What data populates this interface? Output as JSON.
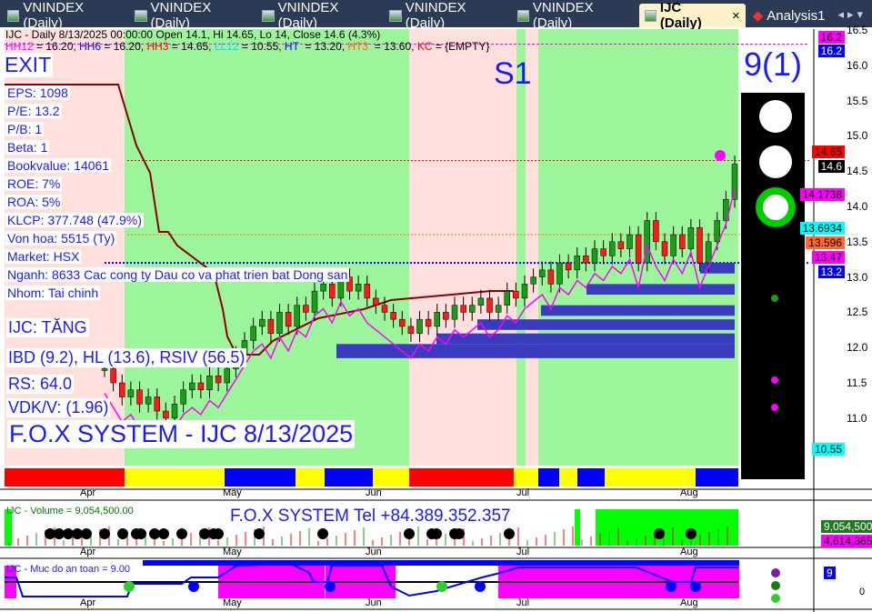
{
  "tabs": [
    {
      "label": "VNINDEX (Daily)"
    },
    {
      "label": "VNINDEX (Daily)"
    },
    {
      "label": "VNINDEX (Daily)"
    },
    {
      "label": "VNINDEX (Daily)"
    },
    {
      "label": "VNINDEX (Daily)"
    },
    {
      "label": "IJC (Daily)",
      "active": true,
      "close": "×"
    },
    {
      "label": "Analysis1"
    }
  ],
  "header": {
    "line1": "IJC - Daily 8/13/2025 00:00:00 Open 14.1, Hi 14.65, Lo 14, Close 14.6 (4.3%)",
    "levels": [
      {
        "t": "HH12",
        "c": "#ff00ff"
      },
      {
        "t": " = 16.20, ",
        "c": "#000"
      },
      {
        "t": "HH6",
        "c": "#0000ff"
      },
      {
        "t": " = 16.20, ",
        "c": "#000"
      },
      {
        "t": "HH3",
        "c": "#ff0000"
      },
      {
        "t": " = 14.65, ",
        "c": "#000"
      },
      {
        "t": "LL12",
        "c": "#00e5ff"
      },
      {
        "t": " = 10.55, ",
        "c": "#000"
      },
      {
        "t": "HT",
        "c": "#0000ff"
      },
      {
        "t": "  = 13.20, ",
        "c": "#000"
      },
      {
        "t": "HT3",
        "c": "#ff6a00"
      },
      {
        "t": "  = 13.60, ",
        "c": "#000"
      },
      {
        "t": "KC",
        "c": "#ff0000"
      },
      {
        "t": " = {EMPTY}",
        "c": "#000"
      }
    ]
  },
  "signal": {
    "exit": "EXIT",
    "s1": "S1",
    "score": "9(1)"
  },
  "fundamentals": [
    "EPS: 1098",
    "P/E: 13.2",
    "P/B: 1",
    "Beta: 1",
    "Bookvalue: 14061",
    "ROE: 7%",
    "ROA: 5%",
    "KLCP: 377.748 (47.9%)",
    "Von hoa: 5515 (Ty)",
    "Market: HSX",
    "Nganh: 8633 Cac cong ty Dau co va phat trien bat Dong san",
    "Nhom: Tai chinh"
  ],
  "status": [
    "IJC: TĂNG",
    "IBD (9.2), HL (13.6), RSIV (56.5)",
    "RS: 64.0",
    "VDK/V:  (1.96)"
  ],
  "watermark": "F.O.X SYSTEM - IJC 8/13/2025",
  "price_axis": {
    "ticks": [
      "16.5",
      "16.0",
      "15.5",
      "15.0",
      "14.5",
      "14.0",
      "13.5",
      "13.0",
      "12.5",
      "12.0",
      "11.5",
      "11.0"
    ],
    "tags": [
      {
        "v": "16.2",
        "bg": "#ff00ff",
        "fg": "#000"
      },
      {
        "v": "16.2",
        "bg": "#0000ff",
        "fg": "#fff"
      },
      {
        "v": "14.65",
        "bg": "#ff0000",
        "fg": "#000"
      },
      {
        "v": "14.6",
        "bg": "#000000",
        "fg": "#fff"
      },
      {
        "v": "14.1738",
        "bg": "#ff00ff",
        "fg": "#000"
      },
      {
        "v": "13.6934",
        "bg": "#00ffff",
        "fg": "#000"
      },
      {
        "v": "13.596",
        "bg": "#ff6a2a",
        "fg": "#000"
      },
      {
        "v": "13.47",
        "bg": "#ff00ff",
        "fg": "#000"
      },
      {
        "v": "13.2",
        "bg": "#0000ff",
        "fg": "#fff"
      },
      {
        "v": "10.55",
        "bg": "#00ffff",
        "fg": "#000"
      }
    ]
  },
  "months": [
    "Apr",
    "May",
    "Jun",
    "Jul",
    "Aug"
  ],
  "price_series": {
    "ohlc_last": {
      "open": 14.1,
      "high": 14.65,
      "low": 14,
      "close": 14.6
    },
    "closes": [
      11.7,
      11.5,
      11.3,
      11.4,
      11.2,
      11.3,
      11.1,
      11.0,
      11.2,
      11.4,
      11.5,
      11.4,
      11.6,
      11.5,
      11.7,
      11.9,
      12.1,
      12.3,
      12.4,
      12.2,
      12.5,
      12.3,
      12.6,
      12.5,
      12.8,
      12.9,
      12.7,
      13.0,
      12.8,
      12.9,
      12.7,
      12.6,
      12.5,
      12.4,
      12.3,
      12.2,
      12.4,
      12.3,
      12.5,
      12.4,
      12.6,
      12.5,
      12.6,
      12.7,
      12.5,
      12.6,
      12.8,
      12.7,
      12.9,
      13.0,
      13.1,
      12.9,
      13.2,
      13.1,
      13.3,
      13.2,
      13.4,
      13.3,
      13.5,
      13.4,
      13.6,
      13.2,
      13.8,
      13.5,
      13.3,
      13.6,
      13.4,
      13.7,
      13.2,
      13.5,
      13.8,
      14.1,
      14.6
    ]
  },
  "volume": {
    "title": "IJC - Volume = 9,054,500.00",
    "tel": "F.O.X SYSTEM Tel +84.389.352.357",
    "tags": [
      {
        "v": "9,054,500",
        "bg": "#1e7a1e",
        "fg": "#fff"
      },
      {
        "v": "4,614,365",
        "bg": "#ff00ff",
        "fg": "#000"
      }
    ]
  },
  "safety": {
    "title": "IJC - Muc do an toan = 9.00",
    "tag": "9",
    "zero": "0"
  },
  "colors": {
    "green_zone": "#9cf59a",
    "pink_zone": "#ffe0dd",
    "text_blue": "#1a1aff"
  }
}
